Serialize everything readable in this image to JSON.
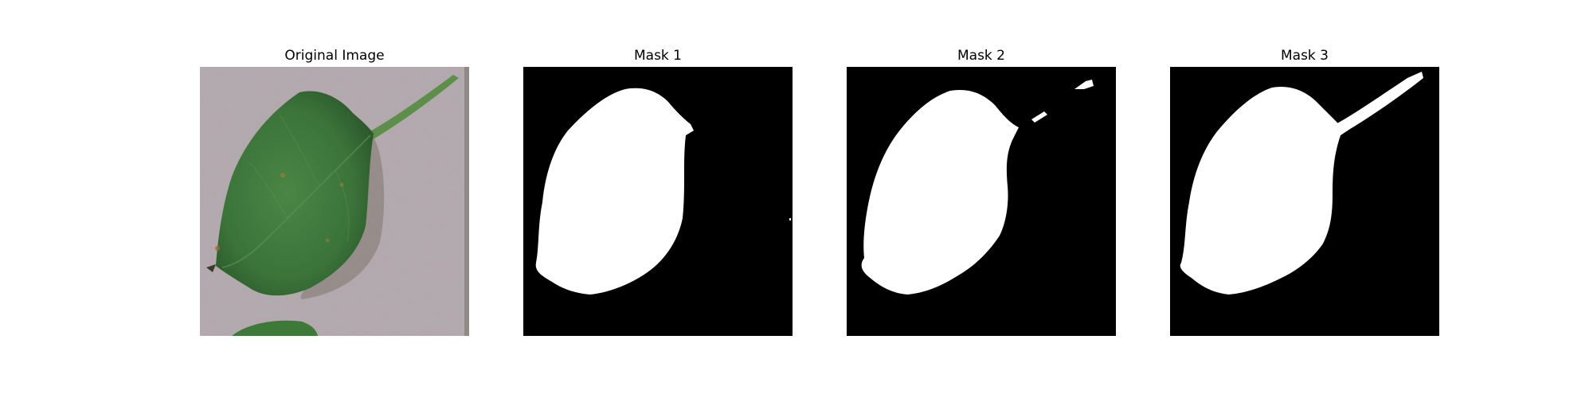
{
  "figure": {
    "panels": [
      {
        "title": "Original Image"
      },
      {
        "title": "Mask 1"
      },
      {
        "title": "Mask 2"
      },
      {
        "title": "Mask 3"
      }
    ]
  },
  "colors": {
    "background": "#ffffff",
    "pavement": "#b7adb2",
    "leaf": "#3f7a3c",
    "leaf_dark": "#2f5f2d",
    "mask_background": "#000000",
    "mask_foreground": "#ffffff"
  }
}
